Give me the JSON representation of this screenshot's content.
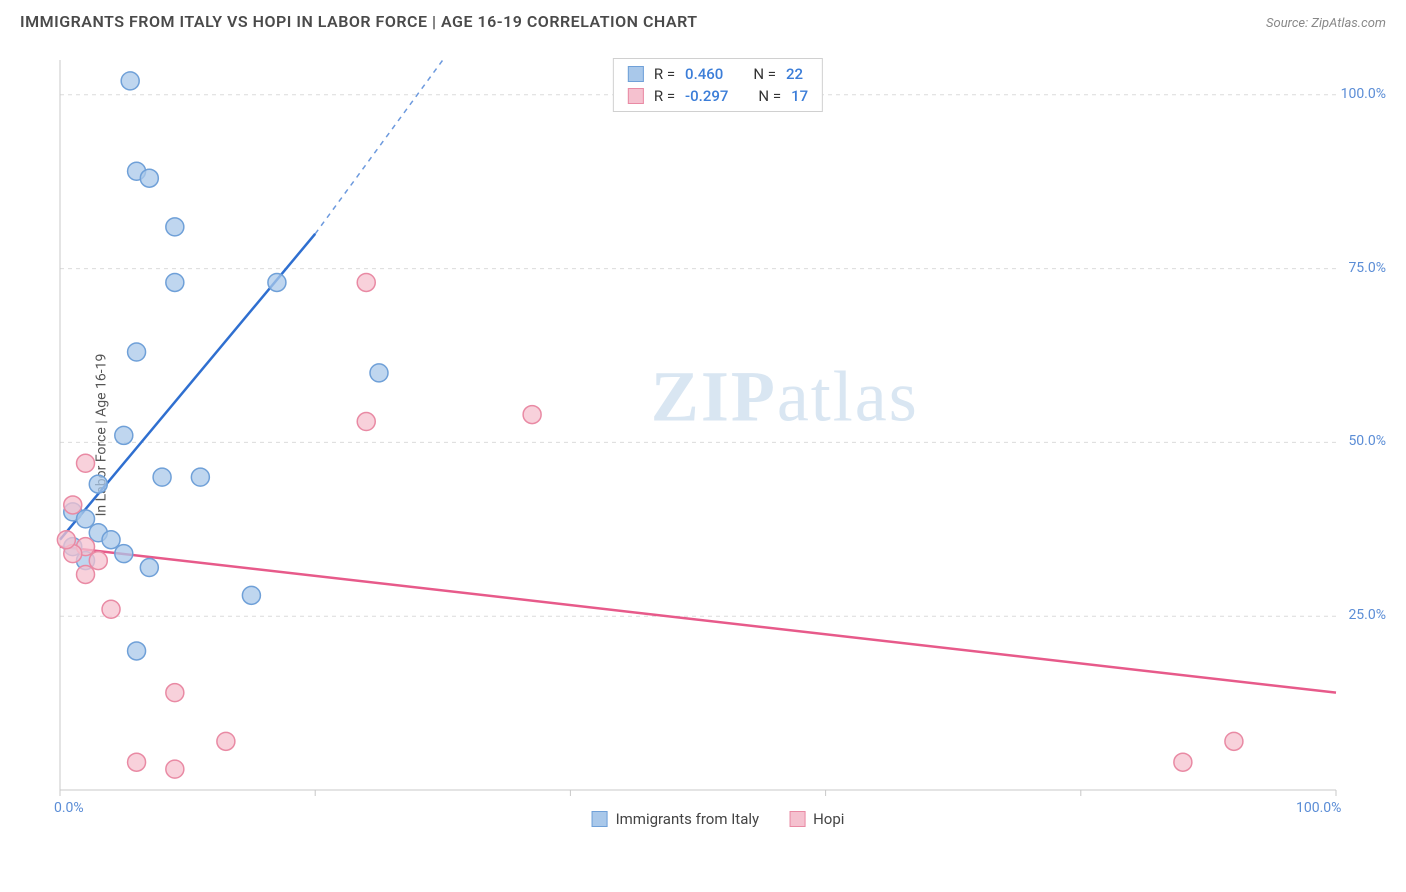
{
  "header": {
    "title": "IMMIGRANTS FROM ITALY VS HOPI IN LABOR FORCE | AGE 16-19 CORRELATION CHART",
    "source": "Source: ZipAtlas.com"
  },
  "chart": {
    "type": "scatter",
    "ylabel": "In Labor Force | Age 16-19",
    "xlim": [
      0,
      100
    ],
    "ylim": [
      0,
      105
    ],
    "x_ticks": [
      0,
      100
    ],
    "x_tick_labels": [
      "0.0%",
      "100.0%"
    ],
    "y_ticks": [
      25,
      50,
      75,
      100
    ],
    "y_tick_labels": [
      "25.0%",
      "50.0%",
      "75.0%",
      "100.0%"
    ],
    "background_color": "#ffffff",
    "grid_color": "#dcdcdc",
    "watermark": "ZIPatlas",
    "series": [
      {
        "name": "Immigrants from Italy",
        "marker_color": "#a9c8ea",
        "marker_stroke": "#6fa0d8",
        "line_color": "#2f6fd0",
        "r_label": "R =",
        "r_value": "0.460",
        "n_label": "N =",
        "n_value": "22",
        "trend_start": [
          0,
          36
        ],
        "trend_end": [
          20,
          80
        ],
        "trend_dash_end": [
          30,
          105
        ],
        "points": [
          [
            5.5,
            102
          ],
          [
            6,
            89
          ],
          [
            7,
            88
          ],
          [
            9,
            81
          ],
          [
            17,
            73
          ],
          [
            9,
            73
          ],
          [
            6,
            63
          ],
          [
            25,
            60
          ],
          [
            5,
            51
          ],
          [
            3,
            44
          ],
          [
            8,
            45
          ],
          [
            11,
            45
          ],
          [
            1,
            40
          ],
          [
            2,
            39
          ],
          [
            3,
            37
          ],
          [
            4,
            36
          ],
          [
            1,
            35
          ],
          [
            5,
            34
          ],
          [
            2,
            33
          ],
          [
            7,
            32
          ],
          [
            15,
            28
          ],
          [
            6,
            20
          ]
        ]
      },
      {
        "name": "Hopi",
        "marker_color": "#f5c1cf",
        "marker_stroke": "#e98aa4",
        "line_color": "#e75a8a",
        "r_label": "R =",
        "r_value": "-0.297",
        "n_label": "N =",
        "n_value": "17",
        "trend_start": [
          0,
          35
        ],
        "trend_end": [
          100,
          14
        ],
        "points": [
          [
            24,
            73
          ],
          [
            37,
            54
          ],
          [
            24,
            53
          ],
          [
            2,
            47
          ],
          [
            1,
            41
          ],
          [
            2,
            35
          ],
          [
            1,
            34
          ],
          [
            3,
            33
          ],
          [
            2,
            31
          ],
          [
            4,
            26
          ],
          [
            9,
            14
          ],
          [
            13,
            7
          ],
          [
            88,
            4
          ],
          [
            92,
            7
          ],
          [
            6,
            4
          ],
          [
            9,
            3
          ],
          [
            0.5,
            36
          ]
        ]
      }
    ],
    "legend_bottom": [
      {
        "label": "Immigrants from Italy",
        "fill": "#a9c8ea",
        "stroke": "#6fa0d8"
      },
      {
        "label": "Hopi",
        "fill": "#f5c1cf",
        "stroke": "#e98aa4"
      }
    ],
    "marker_radius": 9,
    "marker_opacity": 0.75,
    "line_width": 2.5,
    "axis_color": "#c8c8c8",
    "tick_font_color": "#5b8dd6"
  }
}
